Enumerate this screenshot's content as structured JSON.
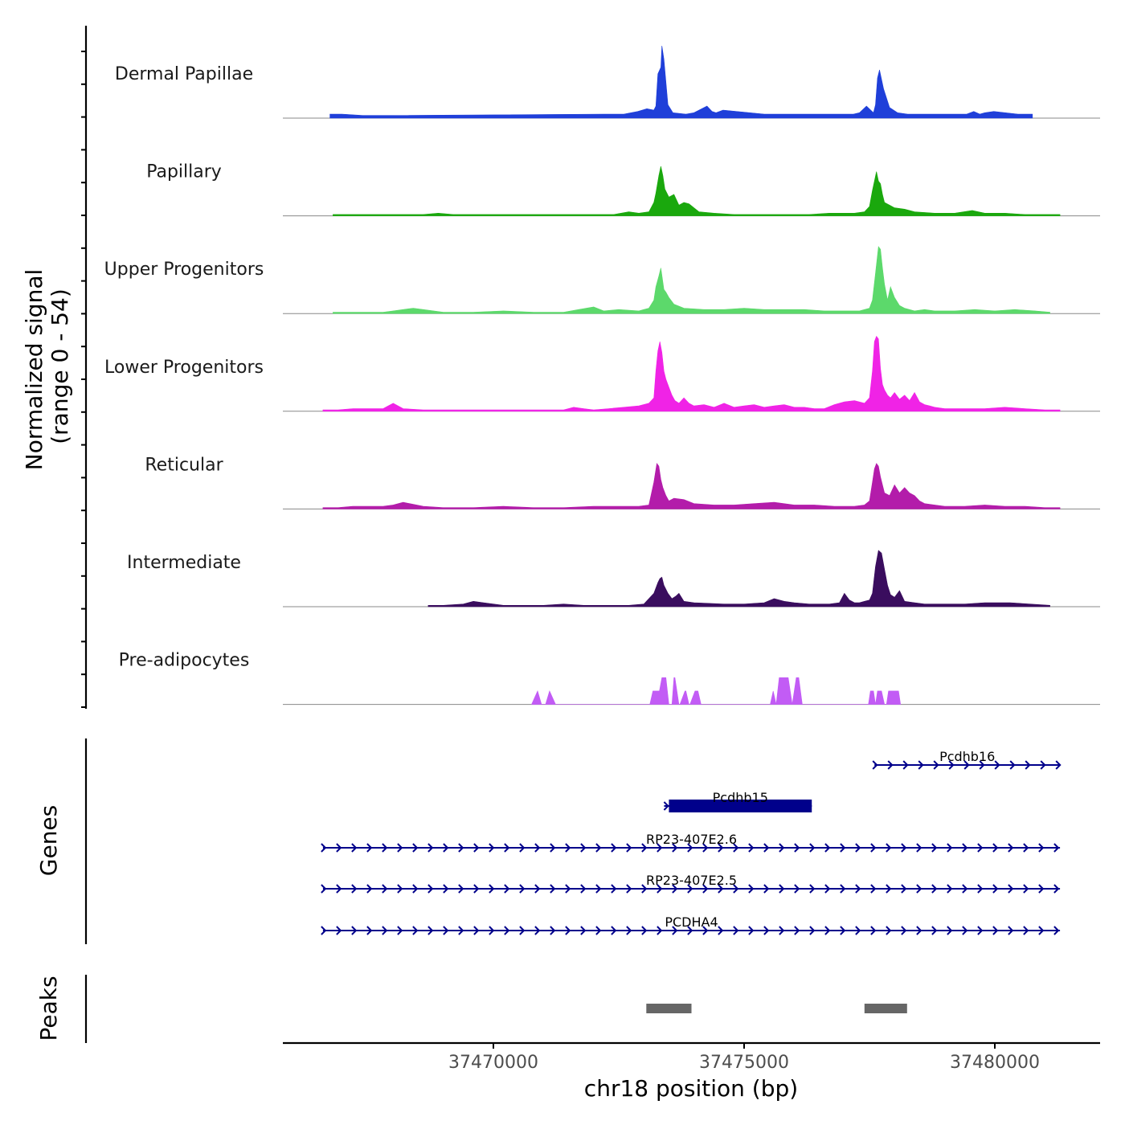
{
  "chart_data": {
    "type": "area",
    "chromosome": "chr18",
    "xlabel": "chr18 position (bp)",
    "xlim": [
      37465800,
      37482100
    ],
    "x_ticks": [
      37470000,
      37475000,
      37480000
    ],
    "x_tick_labels": [
      "37470000",
      "37475000",
      "37480000"
    ],
    "ylabel": "Normalized signal",
    "ylabel_range": "(range 0 - 54)",
    "ylim": [
      0,
      54
    ],
    "genes_label": "Genes",
    "peaks_label": "Peaks",
    "tracks": [
      {
        "name": "Dermal Papillae",
        "color": "#1f3fd9",
        "x": [
          37466740,
          37466820,
          37466900,
          37466980,
          37467400,
          37467780,
          37467860,
          37467960,
          37472200,
          37472440,
          37472600,
          37472880,
          37473060,
          37473200,
          37473240,
          37473280,
          37473340,
          37473360,
          37473400,
          37473480,
          37473580,
          37473840,
          37474000,
          37474260,
          37474360,
          37474440,
          37474580,
          37475400,
          37475650,
          37476940,
          37477180,
          37477300,
          37477440,
          37477580,
          37477620,
          37477660,
          37477700,
          37477780,
          37477900,
          37478060,
          37478260,
          37478950,
          37479220,
          37479440,
          37479580,
          37479700,
          37479800,
          37479980,
          37480460,
          37480750
        ],
        "y": [
          3,
          3,
          3,
          3,
          2,
          2,
          2,
          2,
          3,
          3,
          3,
          5,
          7,
          6,
          9,
          33,
          38,
          54,
          44,
          10,
          4,
          3,
          4,
          9,
          5,
          4,
          6,
          3,
          3,
          3,
          3,
          4,
          9,
          4,
          10,
          30,
          36,
          22,
          8,
          4,
          3,
          3,
          3,
          3,
          5,
          3,
          4,
          5,
          3,
          3
        ]
      },
      {
        "name": "Papillary",
        "color": "#1aa80d",
        "x": [
          37466800,
          37467000,
          37467200,
          37467400,
          37467600,
          37467800,
          37468000,
          37468200,
          37468400,
          37468600,
          37468900,
          37469200,
          37469600,
          37470000,
          37470600,
          37471000,
          37471600,
          37472000,
          37472400,
          37472700,
          37472900,
          37473100,
          37473200,
          37473240,
          37473300,
          37473340,
          37473380,
          37473420,
          37473500,
          37473600,
          37473700,
          37473800,
          37473900,
          37474000,
          37474100,
          37474400,
          37474800,
          37475200,
          37475800,
          37476300,
          37476700,
          37477000,
          37477200,
          37477400,
          37477500,
          37477560,
          37477600,
          37477640,
          37477680,
          37477720,
          37477760,
          37477800,
          37477900,
          37478000,
          37478200,
          37478400,
          37478800,
          37479200,
          37479550,
          37479800,
          37480200,
          37480600,
          37481000,
          37481300
        ],
        "y": [
          1,
          1,
          1,
          1,
          1,
          1,
          1,
          1,
          1,
          1,
          2,
          1,
          1,
          1,
          1,
          1,
          1,
          1,
          1,
          3,
          2,
          3,
          10,
          17,
          30,
          37,
          30,
          20,
          14,
          16,
          8,
          10,
          9,
          6,
          3,
          2,
          1,
          1,
          1,
          1,
          2,
          2,
          2,
          3,
          7,
          19,
          26,
          33,
          26,
          24,
          16,
          10,
          8,
          6,
          5,
          3,
          2,
          2,
          4,
          2,
          2,
          1,
          1,
          1
        ],
        "xext": [
          37466000,
          37482100
        ]
      },
      {
        "name": "Upper Progenitors",
        "color": "#5cd96b",
        "x": [
          37466800,
          37467000,
          37467400,
          37467600,
          37467800,
          37468000,
          37468200,
          37468400,
          37468600,
          37469000,
          37469600,
          37470200,
          37470800,
          37471400,
          37471700,
          37472000,
          37472200,
          37472500,
          37472900,
          37473000,
          37473100,
          37473200,
          37473240,
          37473300,
          37473340,
          37473400,
          37473440,
          37473500,
          37473600,
          37473800,
          37474200,
          37474600,
          37475000,
          37475400,
          37475800,
          37476200,
          37476600,
          37477000,
          37477300,
          37477500,
          37477560,
          37477620,
          37477680,
          37477720,
          37477760,
          37477800,
          37477860,
          37477920,
          37478000,
          37478100,
          37478200,
          37478400,
          37478600,
          37478800,
          37479200,
          37479600,
          37480000,
          37480400,
          37480800,
          37481100
        ],
        "y": [
          1,
          1,
          1,
          1,
          1,
          2,
          3,
          4,
          3,
          1,
          1,
          2,
          1,
          1,
          3,
          5,
          2,
          3,
          2,
          3,
          4,
          10,
          20,
          28,
          34,
          18,
          16,
          12,
          7,
          4,
          3,
          3,
          4,
          3,
          3,
          3,
          2,
          2,
          2,
          4,
          10,
          30,
          50,
          48,
          34,
          22,
          10,
          20,
          12,
          6,
          4,
          2,
          3,
          2,
          2,
          3,
          2,
          3,
          2,
          1
        ],
        "xext": [
          37466000,
          37482100
        ]
      },
      {
        "name": "Lower Progenitors",
        "color": "#f023e6",
        "x": [
          37466600,
          37466900,
          37467200,
          37467500,
          37467800,
          37467900,
          37468000,
          37468200,
          37468600,
          37469000,
          37469600,
          37470200,
          37470800,
          37471400,
          37471600,
          37471800,
          37472000,
          37472300,
          37472600,
          37472900,
          37473100,
          37473200,
          37473240,
          37473280,
          37473320,
          37473360,
          37473400,
          37473440,
          37473500,
          37473560,
          37473620,
          37473700,
          37473800,
          37473900,
          37474000,
          37474200,
          37474400,
          37474600,
          37474800,
          37475000,
          37475200,
          37475400,
          37475600,
          37475800,
          37476000,
          37476200,
          37476400,
          37476600,
          37476800,
          37477000,
          37477200,
          37477400,
          37477500,
          37477560,
          37477600,
          37477640,
          37477680,
          37477720,
          37477760,
          37477800,
          37477860,
          37477920,
          37478000,
          37478100,
          37478200,
          37478300,
          37478400,
          37478500,
          37478600,
          37478700,
          37478800,
          37479000,
          37479400,
          37479800,
          37480200,
          37480600,
          37481000,
          37481300
        ],
        "y": [
          1,
          1,
          2,
          2,
          2,
          4,
          6,
          2,
          1,
          1,
          1,
          1,
          1,
          1,
          3,
          2,
          1,
          2,
          3,
          4,
          6,
          10,
          30,
          45,
          52,
          44,
          30,
          24,
          18,
          12,
          8,
          6,
          10,
          6,
          4,
          5,
          3,
          6,
          3,
          4,
          5,
          3,
          4,
          5,
          3,
          3,
          2,
          2,
          5,
          7,
          8,
          6,
          10,
          30,
          52,
          56,
          54,
          32,
          20,
          16,
          12,
          10,
          14,
          9,
          12,
          8,
          14,
          7,
          5,
          4,
          3,
          2,
          2,
          2,
          3,
          2,
          1,
          1
        ],
        "xext": [
          37466000,
          37482100
        ]
      },
      {
        "name": "Reticular",
        "color": "#b31caa",
        "x": [
          37466600,
          37466900,
          37467200,
          37467500,
          37467800,
          37468000,
          37468200,
          37468600,
          37469000,
          37469600,
          37470200,
          37470800,
          37471400,
          37472000,
          37472600,
          37472900,
          37473100,
          37473200,
          37473260,
          37473300,
          37473340,
          37473380,
          37473440,
          37473500,
          37473600,
          37473800,
          37474000,
          37474400,
          37474800,
          37475200,
          37475600,
          37476000,
          37476400,
          37476800,
          37477000,
          37477200,
          37477400,
          37477500,
          37477560,
          37477600,
          37477640,
          37477680,
          37477720,
          37477760,
          37477800,
          37477900,
          37478000,
          37478100,
          37478200,
          37478300,
          37478400,
          37478500,
          37478600,
          37478800,
          37479000,
          37479400,
          37479800,
          37480200,
          37480600,
          37481000,
          37481300
        ],
        "y": [
          1,
          1,
          2,
          2,
          2,
          3,
          5,
          2,
          1,
          1,
          2,
          1,
          1,
          2,
          2,
          2,
          3,
          20,
          34,
          32,
          22,
          16,
          10,
          6,
          8,
          7,
          4,
          3,
          3,
          4,
          5,
          3,
          3,
          2,
          2,
          2,
          3,
          6,
          20,
          30,
          34,
          32,
          24,
          18,
          12,
          10,
          18,
          12,
          16,
          12,
          10,
          6,
          4,
          3,
          2,
          2,
          3,
          2,
          2,
          1,
          1
        ],
        "xext": [
          37466000,
          37482100
        ]
      },
      {
        "name": "Intermediate",
        "color": "#3a0d5e",
        "x": [
          37468700,
          37469000,
          37469400,
          37469600,
          37469800,
          37470000,
          37470200,
          37470600,
          37471000,
          37471400,
          37471800,
          37472200,
          37472700,
          37473000,
          37473200,
          37473280,
          37473320,
          37473360,
          37473400,
          37473480,
          37473560,
          37473640,
          37473700,
          37473800,
          37474000,
          37474600,
          37475000,
          37475400,
          37475600,
          37475800,
          37476000,
          37476300,
          37476700,
          37476900,
          37477000,
          37477100,
          37477200,
          37477300,
          37477400,
          37477500,
          37477560,
          37477620,
          37477680,
          37477740,
          37477800,
          37477860,
          37477920,
          37478000,
          37478100,
          37478200,
          37478400,
          37478600,
          37479000,
          37479400,
          37479800,
          37480000,
          37480300,
          37480700,
          37481100
        ],
        "y": [
          1,
          1,
          2,
          4,
          3,
          2,
          1,
          1,
          1,
          2,
          1,
          1,
          1,
          2,
          10,
          18,
          21,
          22,
          16,
          10,
          6,
          8,
          10,
          4,
          3,
          2,
          2,
          3,
          6,
          4,
          3,
          2,
          2,
          3,
          10,
          5,
          3,
          3,
          4,
          5,
          10,
          30,
          42,
          40,
          28,
          16,
          9,
          7,
          12,
          4,
          3,
          2,
          2,
          2,
          3,
          3,
          3,
          2,
          1
        ],
        "xext": [
          37466000,
          37482100
        ]
      },
      {
        "name": "Pre-adipocytes",
        "color": "#c25cf5",
        "x": [
          37470760,
          37470880,
          37470960,
          37471040,
          37471120,
          37471240,
          37473120,
          37473180,
          37473250,
          37473310,
          37473360,
          37473440,
          37473500,
          37473560,
          37473600,
          37473620,
          37473700,
          37473720,
          37473820,
          37473840,
          37473900,
          37473920,
          37474020,
          37474080,
          37474140,
          37475520,
          37475580,
          37475640,
          37475700,
          37475760,
          37475820,
          37475880,
          37475960,
          37476040,
          37476090,
          37476160,
          37476220,
          37477480,
          37477520,
          37477580,
          37477620,
          37477660,
          37477740,
          37477800,
          37477840,
          37477880,
          37477920,
          37477960,
          37478000,
          37478040,
          37478080,
          37478120
        ],
        "y": [
          0,
          10,
          0,
          0,
          10,
          0,
          0,
          10,
          10,
          10,
          20,
          20,
          0,
          0,
          20,
          20,
          0,
          0,
          10,
          10,
          0,
          0,
          10,
          10,
          0,
          0,
          10,
          0,
          20,
          20,
          20,
          20,
          0,
          20,
          20,
          0,
          0,
          0,
          10,
          10,
          0,
          10,
          10,
          0,
          0,
          10,
          10,
          10,
          10,
          10,
          10,
          0
        ]
      }
    ],
    "genes": [
      {
        "name": "Pcdhb16",
        "start": 37477600,
        "end": 37481300,
        "strand": "+",
        "thick": false
      },
      {
        "name": "Pcdhb15",
        "start": 37473500,
        "end": 37476350,
        "strand": "+",
        "thick": true
      },
      {
        "name": "RP23-407E2.6",
        "start": 37466600,
        "end": 37481300,
        "strand": "+",
        "thick": false
      },
      {
        "name": "RP23-407E2.5",
        "start": 37466600,
        "end": 37481300,
        "strand": "+",
        "thick": false
      },
      {
        "name": "PCDHA4",
        "start": 37466600,
        "end": 37481300,
        "strand": "+",
        "thick": false
      }
    ],
    "peaks": [
      {
        "start": 37473050,
        "end": 37473950
      },
      {
        "start": 37477400,
        "end": 37478250
      }
    ]
  }
}
